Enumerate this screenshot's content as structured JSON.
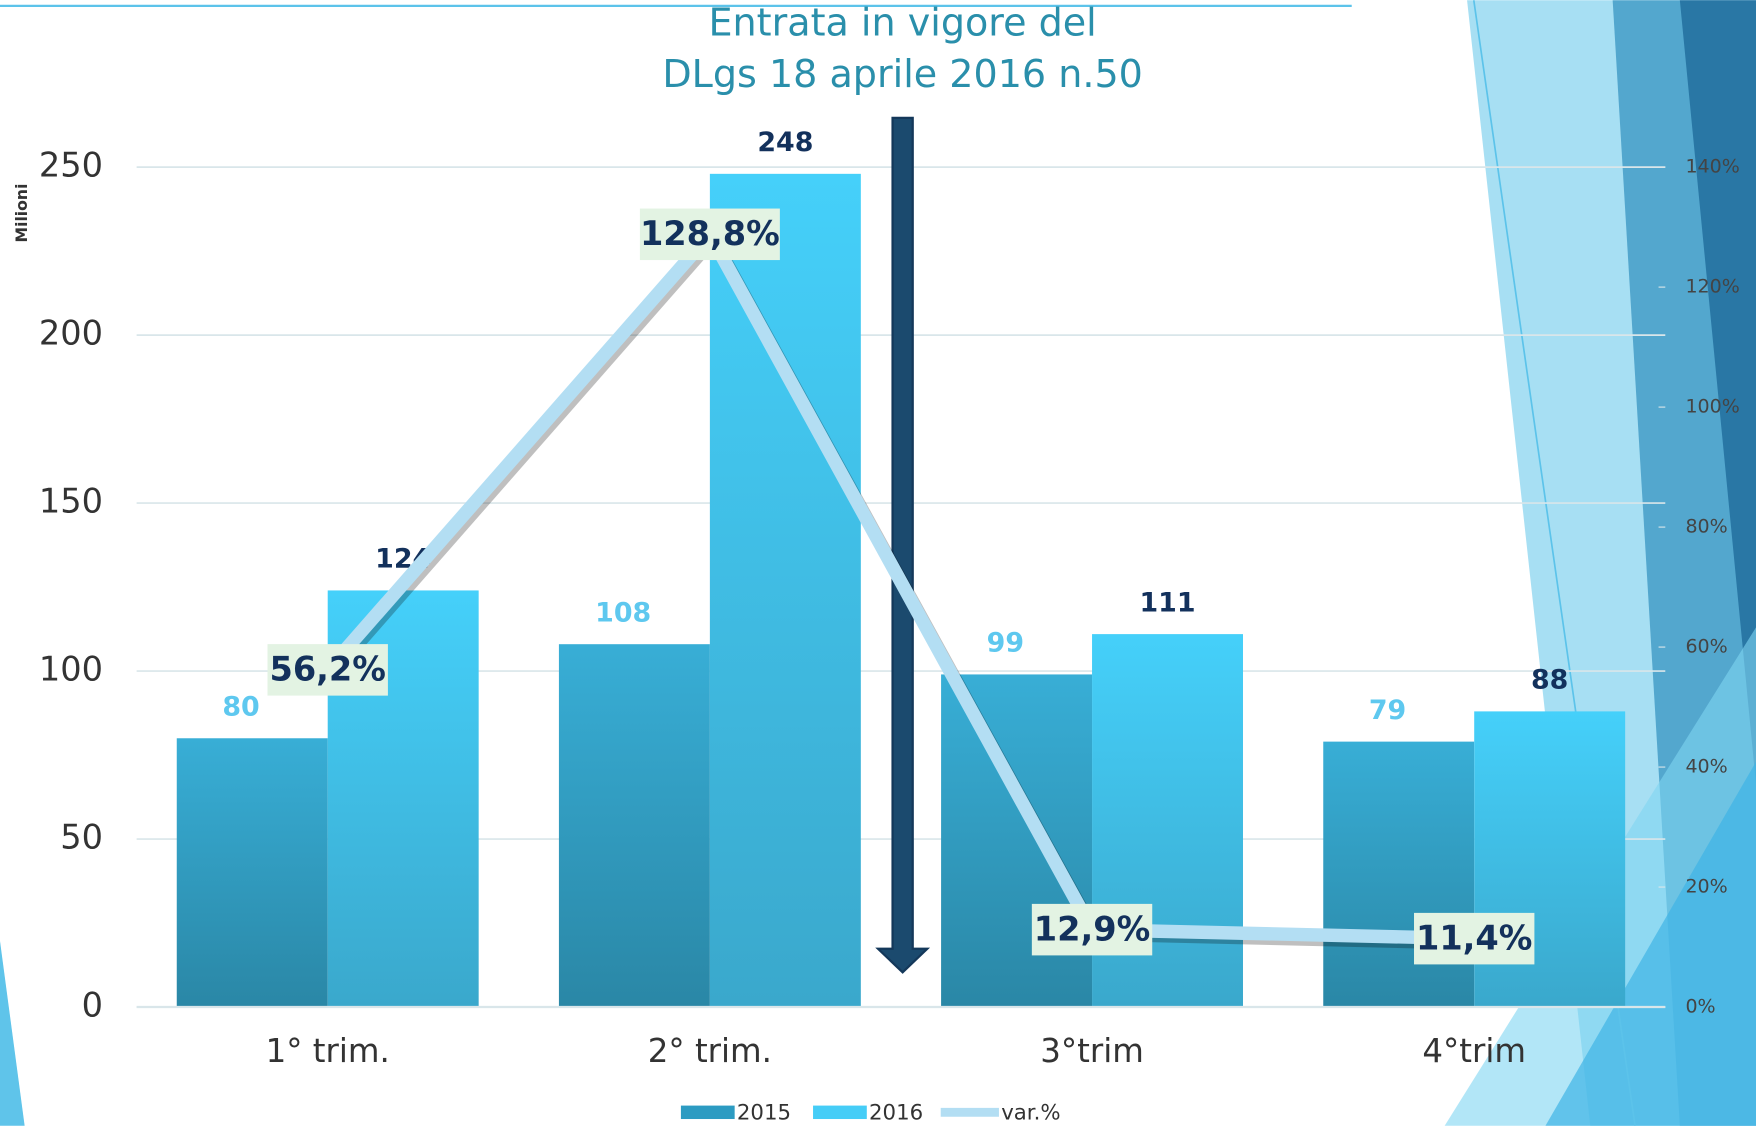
{
  "chart_data": {
    "type": "bar",
    "annotation": [
      "Entrata in vigore del",
      "DLgs 18 aprile 2016 n.50"
    ],
    "y_label": "Milioni",
    "categories": [
      "1° trim.",
      "2° trim.",
      "3°trim",
      "4°trim"
    ],
    "series": [
      {
        "name": "2015",
        "color": "#2c9bc2",
        "values": [
          80,
          108,
          99,
          79
        ]
      },
      {
        "name": "2016",
        "color": "#45cdf7",
        "values": [
          124,
          248,
          111,
          88
        ]
      },
      {
        "name": "var.%",
        "type": "line",
        "axis": "y2",
        "color": "#b3def3",
        "values": [
          56.2,
          128.8,
          12.9,
          11.4
        ],
        "value_labels": [
          "56,2%",
          "128,8%",
          "12,9%",
          "11,4%"
        ]
      }
    ],
    "ylim": [
      0,
      250
    ],
    "yticks": [
      0,
      50,
      100,
      150,
      200,
      250
    ],
    "y2lim": [
      0,
      140
    ],
    "y2ticks": [
      {
        "value": 0,
        "label": "0%"
      },
      {
        "value": 20,
        "label": "20%"
      },
      {
        "value": 40,
        "label": "40%"
      },
      {
        "value": 60,
        "label": "60%"
      },
      {
        "value": 80,
        "label": "80%"
      },
      {
        "value": 100,
        "label": "100%"
      },
      {
        "value": 120,
        "label": "120%"
      },
      {
        "value": 140,
        "label": "140%"
      }
    ],
    "grid": true,
    "legend": "bottom"
  }
}
